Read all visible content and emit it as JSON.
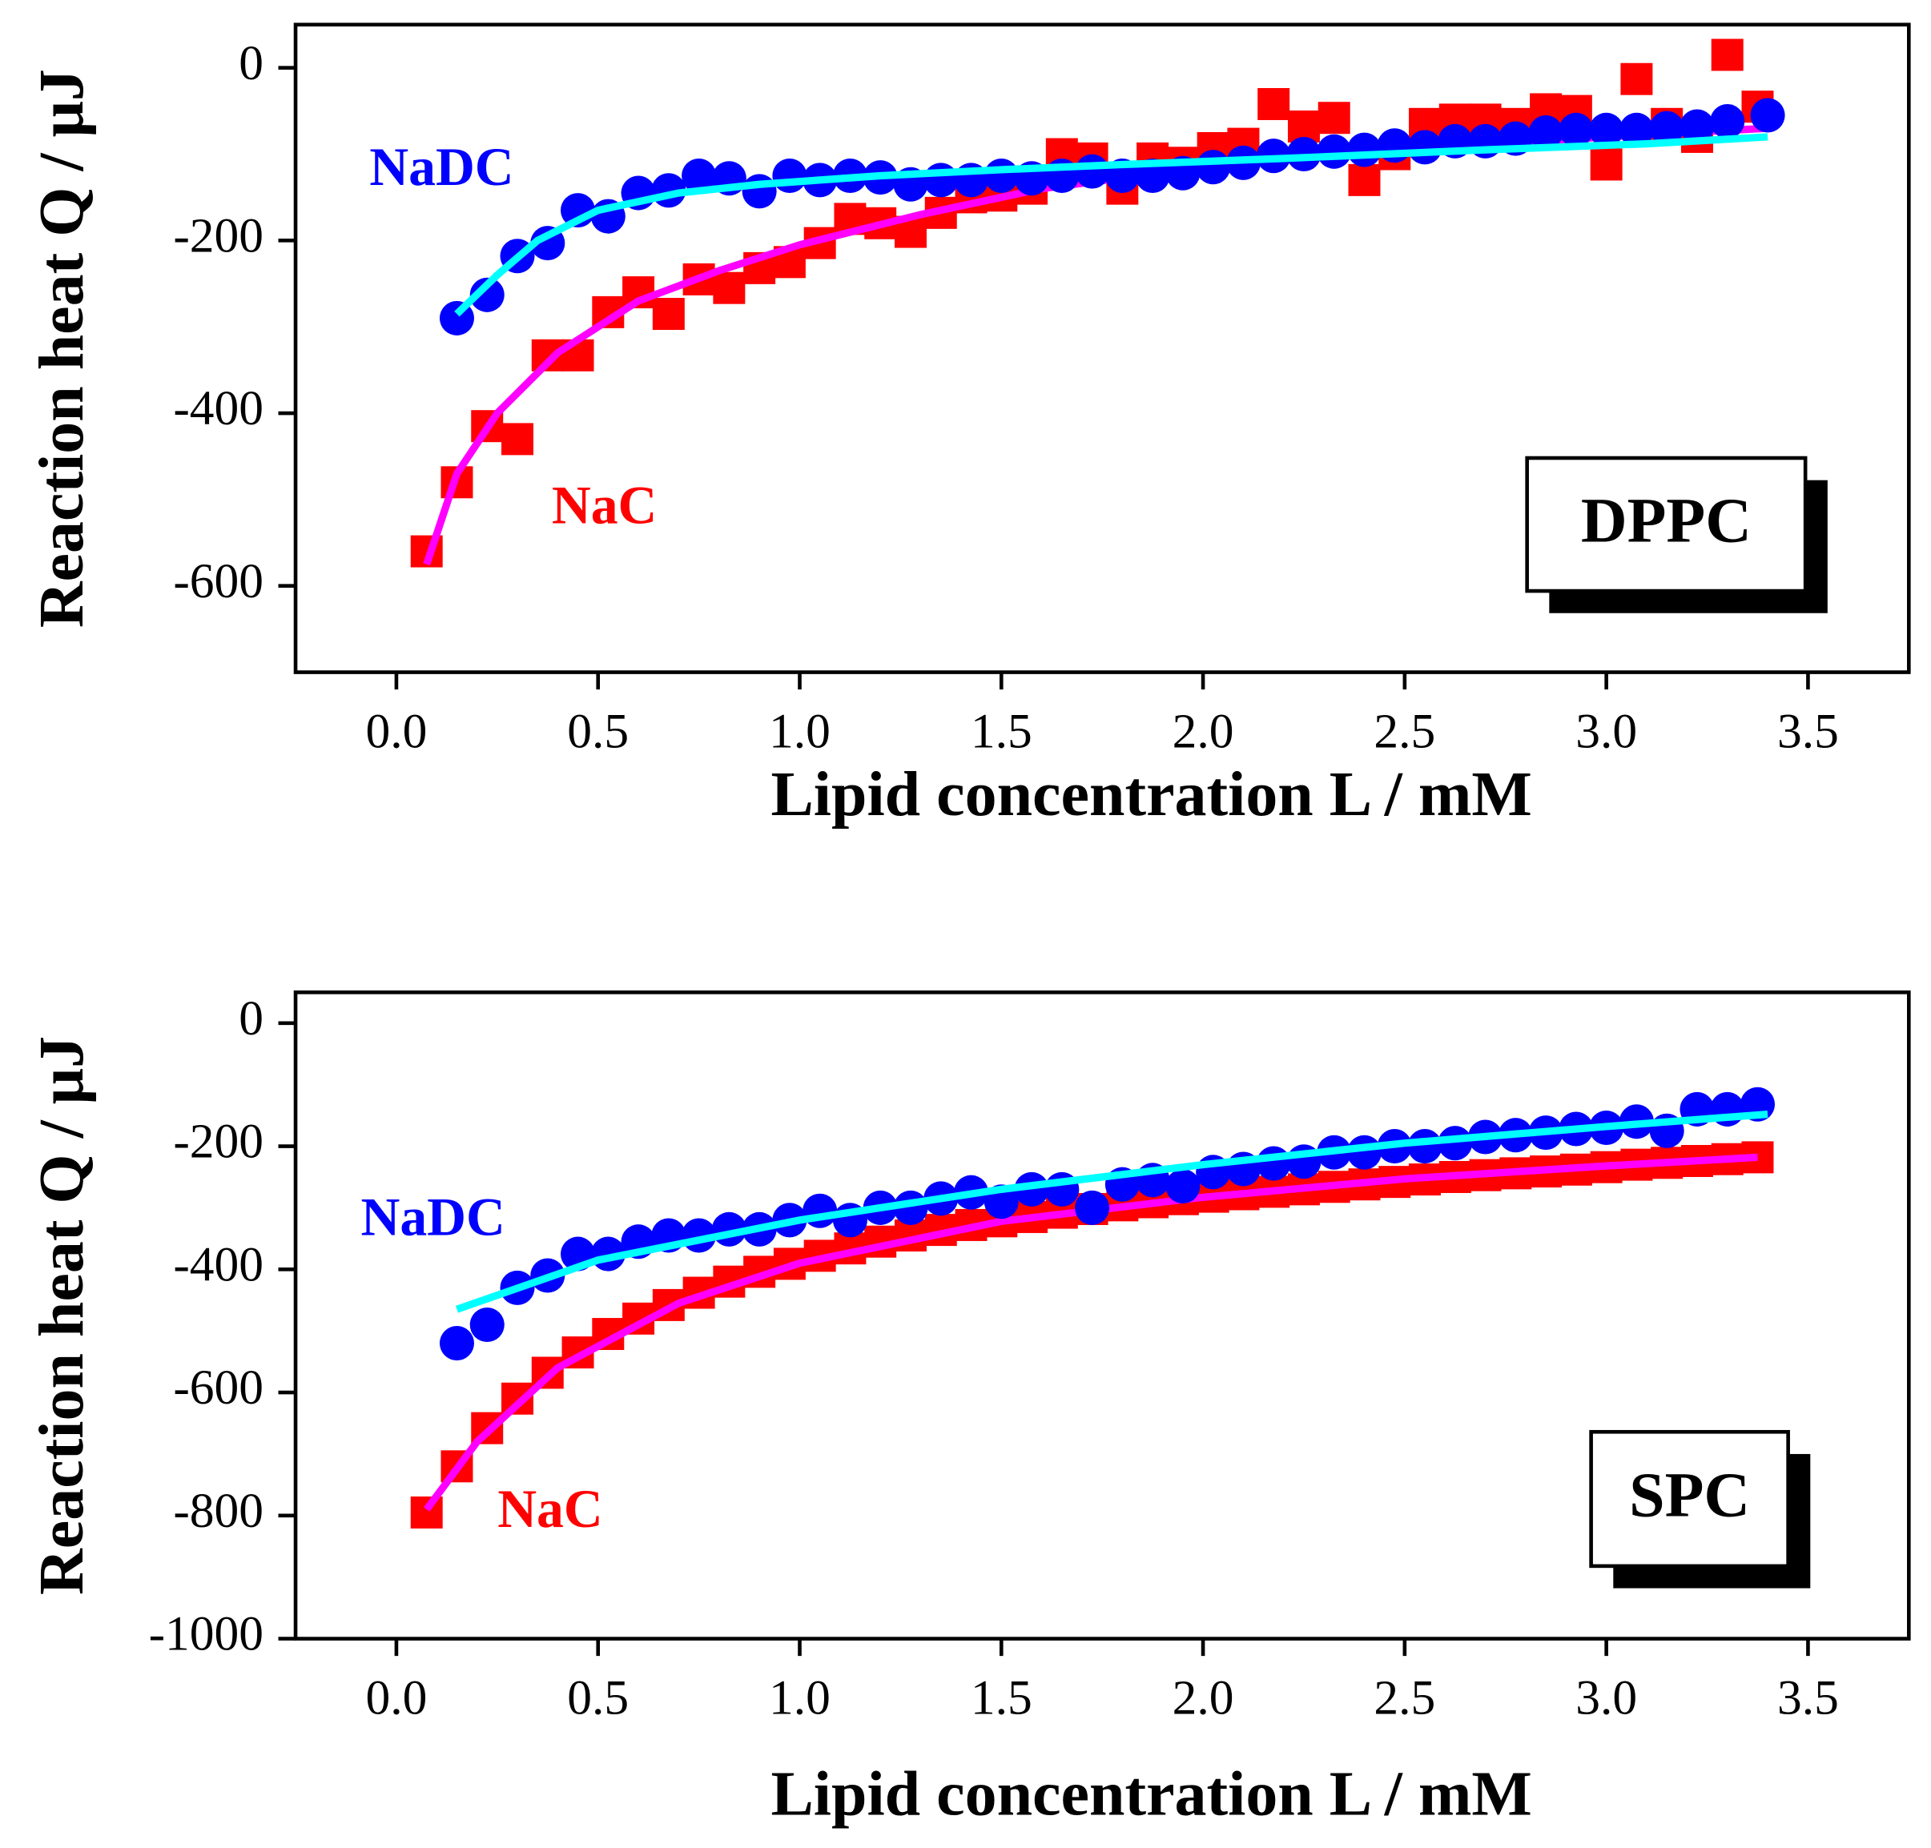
{
  "chart_data": [
    {
      "type": "scatter",
      "panel_label": "DPPC",
      "x_label": "Lipid concentration L / mM",
      "y_label": "Reaction heat Q / μJ",
      "xlim": [
        -0.25,
        3.75
      ],
      "ylim": [
        -700,
        50
      ],
      "xticks": [
        {
          "value": 0,
          "label": "0.0"
        },
        {
          "value": 0.5,
          "label": "0.5"
        },
        {
          "value": 1,
          "label": "1.0"
        },
        {
          "value": 1.5,
          "label": "1.5"
        },
        {
          "value": 2,
          "label": "2.0"
        },
        {
          "value": 2.5,
          "label": "2.5"
        },
        {
          "value": 3,
          "label": "3.0"
        },
        {
          "value": 3.5,
          "label": "3.5"
        }
      ],
      "yticks": [
        0,
        -200,
        -400,
        -600
      ],
      "series": [
        {
          "name": "NaC",
          "color": "#ff0000",
          "marker": "square",
          "x": [
            0.075,
            0.15,
            0.225,
            0.3,
            0.375,
            0.45,
            0.525,
            0.6,
            0.675,
            0.75,
            0.825,
            0.9,
            0.975,
            1.05,
            1.125,
            1.2,
            1.275,
            1.35,
            1.425,
            1.5,
            1.575,
            1.65,
            1.725,
            1.8,
            1.875,
            1.95,
            2.025,
            2.1,
            2.175,
            2.25,
            2.325,
            2.4,
            2.475,
            2.55,
            2.625,
            2.7,
            2.775,
            2.85,
            2.925,
            3.0,
            3.075,
            3.15,
            3.225,
            3.3,
            3.375
          ],
          "values": [
            -560,
            -480,
            -415,
            -430,
            -333,
            -333,
            -283,
            -260,
            -285,
            -245,
            -255,
            -232,
            -225,
            -203,
            -175,
            -180,
            -190,
            -168,
            -150,
            -148,
            -140,
            -100,
            -105,
            -140,
            -105,
            -110,
            -93,
            -88,
            -42,
            -68,
            -58,
            -130,
            -100,
            -65,
            -60,
            -60,
            -65,
            -48,
            -50,
            -112,
            -13,
            -65,
            -80,
            15,
            -45
          ]
        },
        {
          "color": "#ff00ff",
          "marker": "line",
          "x": [
            0.075,
            0.15,
            0.25,
            0.4,
            0.6,
            0.8,
            1.0,
            1.3,
            1.6,
            2.0,
            2.5,
            3.0,
            3.4
          ],
          "values": [
            -575,
            -470,
            -400,
            -330,
            -270,
            -235,
            -205,
            -170,
            -140,
            -115,
            -95,
            -80,
            -70
          ]
        },
        {
          "name": "NaDC",
          "color": "#0000ff",
          "marker": "circle",
          "x": [
            0.15,
            0.225,
            0.3,
            0.375,
            0.45,
            0.525,
            0.6,
            0.675,
            0.75,
            0.825,
            0.9,
            0.975,
            1.05,
            1.125,
            1.2,
            1.275,
            1.35,
            1.425,
            1.5,
            1.575,
            1.65,
            1.725,
            1.8,
            1.875,
            1.95,
            2.025,
            2.1,
            2.175,
            2.25,
            2.325,
            2.4,
            2.475,
            2.55,
            2.625,
            2.7,
            2.775,
            2.85,
            2.925,
            3.0,
            3.075,
            3.15,
            3.225,
            3.3,
            3.4
          ],
          "values": [
            -290,
            -263,
            -218,
            -203,
            -165,
            -172,
            -145,
            -142,
            -125,
            -128,
            -143,
            -125,
            -130,
            -125,
            -127,
            -135,
            -130,
            -130,
            -125,
            -128,
            -125,
            -120,
            -125,
            -125,
            -122,
            -115,
            -110,
            -102,
            -100,
            -97,
            -95,
            -90,
            -92,
            -85,
            -85,
            -82,
            -75,
            -72,
            -72,
            -72,
            -70,
            -68,
            -62,
            -55
          ]
        },
        {
          "color": "#00ffff",
          "marker": "line",
          "x": [
            0.15,
            0.25,
            0.35,
            0.5,
            0.7,
            0.9,
            1.2,
            1.5,
            1.8,
            2.2,
            2.7,
            3.1,
            3.4
          ],
          "values": [
            -285,
            -240,
            -200,
            -165,
            -145,
            -135,
            -125,
            -118,
            -112,
            -105,
            -95,
            -88,
            -80
          ]
        }
      ]
    },
    {
      "type": "scatter",
      "panel_label": "SPC",
      "x_label": "Lipid concentration L / mM",
      "y_label": "Reaction heat Q / μJ",
      "xlim": [
        -0.25,
        3.75
      ],
      "ylim": [
        -1000,
        50
      ],
      "xticks": [
        {
          "value": 0,
          "label": "0.0"
        },
        {
          "value": 0.5,
          "label": "0.5"
        },
        {
          "value": 1,
          "label": "1.0"
        },
        {
          "value": 1.5,
          "label": "1.5"
        },
        {
          "value": 2,
          "label": "2.0"
        },
        {
          "value": 2.5,
          "label": "2.5"
        },
        {
          "value": 3,
          "label": "3.0"
        },
        {
          "value": 3.5,
          "label": "3.5"
        }
      ],
      "yticks": [
        0,
        -200,
        -400,
        -600,
        -800,
        -1000
      ],
      "series": [
        {
          "name": "NaC",
          "color": "#ff0000",
          "marker": "square",
          "x": [
            0.075,
            0.15,
            0.225,
            0.3,
            0.375,
            0.45,
            0.525,
            0.6,
            0.675,
            0.75,
            0.825,
            0.9,
            0.975,
            1.05,
            1.125,
            1.2,
            1.275,
            1.35,
            1.425,
            1.5,
            1.575,
            1.65,
            1.725,
            1.8,
            1.875,
            1.95,
            2.025,
            2.1,
            2.175,
            2.25,
            2.325,
            2.4,
            2.475,
            2.55,
            2.625,
            2.7,
            2.775,
            2.85,
            2.925,
            3.0,
            3.075,
            3.15,
            3.225,
            3.3,
            3.375
          ],
          "values": [
            -795,
            -720,
            -658,
            -610,
            -568,
            -535,
            -505,
            -480,
            -458,
            -438,
            -420,
            -404,
            -391,
            -378,
            -366,
            -355,
            -345,
            -336,
            -328,
            -322,
            -315,
            -308,
            -302,
            -296,
            -291,
            -286,
            -282,
            -278,
            -274,
            -270,
            -266,
            -262,
            -258,
            -254,
            -250,
            -247,
            -244,
            -241,
            -238,
            -234,
            -230,
            -227,
            -224,
            -221,
            -218
          ]
        },
        {
          "color": "#ff00ff",
          "marker": "line",
          "x": [
            0.075,
            0.2,
            0.4,
            0.7,
            1.0,
            1.5,
            2.0,
            2.5,
            3.0,
            3.375
          ],
          "values": [
            -790,
            -680,
            -560,
            -455,
            -390,
            -322,
            -283,
            -253,
            -232,
            -218
          ]
        },
        {
          "name": "NaDC",
          "color": "#0000ff",
          "marker": "circle",
          "x": [
            0.15,
            0.225,
            0.3,
            0.375,
            0.45,
            0.525,
            0.6,
            0.675,
            0.75,
            0.825,
            0.9,
            0.975,
            1.05,
            1.125,
            1.2,
            1.275,
            1.35,
            1.425,
            1.5,
            1.575,
            1.65,
            1.725,
            1.8,
            1.875,
            1.95,
            2.025,
            2.1,
            2.175,
            2.25,
            2.325,
            2.4,
            2.475,
            2.55,
            2.625,
            2.7,
            2.775,
            2.85,
            2.925,
            3.0,
            3.075,
            3.15,
            3.225,
            3.3,
            3.375
          ],
          "values": [
            -520,
            -490,
            -430,
            -410,
            -375,
            -375,
            -355,
            -345,
            -345,
            -335,
            -335,
            -320,
            -305,
            -320,
            -300,
            -300,
            -285,
            -275,
            -290,
            -270,
            -270,
            -300,
            -262,
            -255,
            -265,
            -242,
            -237,
            -228,
            -225,
            -210,
            -210,
            -200,
            -200,
            -195,
            -185,
            -182,
            -178,
            -172,
            -170,
            -160,
            -175,
            -140,
            -140,
            -132
          ]
        },
        {
          "color": "#00ffff",
          "marker": "line",
          "x": [
            0.15,
            0.5,
            1.0,
            1.5,
            2.0,
            2.5,
            3.0,
            3.4
          ],
          "values": [
            -465,
            -385,
            -320,
            -270,
            -230,
            -195,
            -168,
            -148
          ]
        }
      ]
    }
  ]
}
